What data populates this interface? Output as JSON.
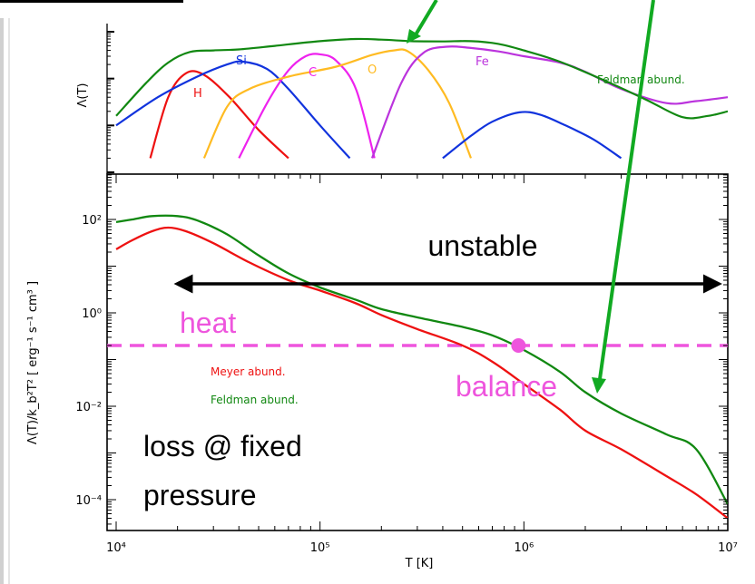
{
  "colors": {
    "red": "#ee1111",
    "blue": "#1133dd",
    "magenta": "#ee22ee",
    "orange": "#ffbb22",
    "purple": "#bb33dd",
    "green": "#118811",
    "heat": "#ee55dd",
    "arrow": "#11aa22"
  },
  "chart_data": [
    {
      "type": "line",
      "panel": "top",
      "title": "",
      "xlabel": "",
      "ylabel": "Λ(T)",
      "xscale": "log",
      "yscale": "log",
      "xlim": [
        10000,
        10000000
      ],
      "series": [
        {
          "name": "H",
          "color": "red",
          "points": [
            [
              14700,
              0.02
            ],
            [
              18000,
              0.4
            ],
            [
              22000,
              1.3
            ],
            [
              27000,
              1.2
            ],
            [
              36000,
              0.4
            ],
            [
              50000,
              0.08
            ],
            [
              70000,
              0.02
            ]
          ]
        },
        {
          "name": "Si",
          "color": "blue",
          "points": [
            [
              10000,
              0.1
            ],
            [
              16000,
              0.4
            ],
            [
              25000,
              1.1
            ],
            [
              35000,
              2.0
            ],
            [
              42000,
              2.3
            ],
            [
              55000,
              1.6
            ],
            [
              70000,
              0.6
            ],
            [
              100000,
              0.1
            ],
            [
              140000,
              0.02
            ]
          ]
        },
        {
          "name": "C",
          "color": "magenta",
          "points": [
            [
              40000,
              0.02
            ],
            [
              55000,
              0.3
            ],
            [
              70000,
              1.5
            ],
            [
              85000,
              3.0
            ],
            [
              100000,
              3.3
            ],
            [
              120000,
              2.4
            ],
            [
              150000,
              0.6
            ],
            [
              185000,
              0.02
            ]
          ]
        },
        {
          "name": "O",
          "color": "orange",
          "points": [
            [
              27000,
              0.02
            ],
            [
              35000,
              0.25
            ],
            [
              45000,
              0.6
            ],
            [
              70000,
              1.1
            ],
            [
              120000,
              1.8
            ],
            [
              180000,
              3.2
            ],
            [
              230000,
              4.0
            ],
            [
              270000,
              3.8
            ],
            [
              340000,
              1.5
            ],
            [
              430000,
              0.3
            ],
            [
              550000,
              0.02
            ]
          ]
        },
        {
          "name": "Fe",
          "color": "purple",
          "points": [
            [
              180000,
              0.02
            ],
            [
              250000,
              0.8
            ],
            [
              320000,
              3.5
            ],
            [
              420000,
              4.8
            ],
            [
              550000,
              4.5
            ],
            [
              750000,
              3.8
            ],
            [
              1000000,
              3.0
            ],
            [
              1500000,
              2.2
            ],
            [
              2000000,
              1.4
            ],
            [
              3000000,
              0.6
            ],
            [
              5000000,
              0.3
            ],
            [
              7000000,
              0.33
            ],
            [
              10000000,
              0.4
            ]
          ]
        },
        {
          "name": "Feldman abund.",
          "color": "green",
          "points": [
            [
              10000,
              0.16
            ],
            [
              14000,
              0.8
            ],
            [
              18000,
              2.2
            ],
            [
              23000,
              3.7
            ],
            [
              30000,
              4.0
            ],
            [
              40000,
              4.2
            ],
            [
              60000,
              5.0
            ],
            [
              100000,
              6.3
            ],
            [
              150000,
              7.0
            ],
            [
              200000,
              6.8
            ],
            [
              280000,
              6.3
            ],
            [
              400000,
              6.2
            ],
            [
              550000,
              6.3
            ],
            [
              750000,
              5.5
            ],
            [
              1000000,
              4.0
            ],
            [
              1500000,
              2.3
            ],
            [
              2500000,
              0.9
            ],
            [
              4000000,
              0.35
            ],
            [
              6000000,
              0.15
            ],
            [
              8000000,
              0.16
            ],
            [
              10000000,
              0.2
            ]
          ]
        },
        {
          "name": "",
          "color": "blue",
          "points": [
            [
              400000,
              0.02
            ],
            [
              550000,
              0.06
            ],
            [
              700000,
              0.12
            ],
            [
              950000,
              0.19
            ],
            [
              1200000,
              0.17
            ],
            [
              1600000,
              0.1
            ],
            [
              2200000,
              0.05
            ],
            [
              3000000,
              0.02
            ]
          ]
        }
      ]
    },
    {
      "type": "line",
      "panel": "bottom",
      "title": "",
      "xlabel": "T [K]",
      "ylabel": "Λ(T)/k_b²T² [ erg⁻¹ s⁻¹ cm³ ]",
      "xscale": "log",
      "yscale": "log",
      "xlim": [
        10000,
        10000000
      ],
      "ylim": [
        1.35e-05,
        600
      ],
      "xticks": [
        "10⁴",
        "10⁵",
        "10⁶",
        "10⁷"
      ],
      "yticks": [
        "10²",
        "10⁰",
        "10⁻²",
        "10⁻⁴"
      ],
      "series": [
        {
          "name": "Meyer abund.",
          "color": "red",
          "points": [
            [
              10000,
              23
            ],
            [
              12000,
              36
            ],
            [
              15000,
              56
            ],
            [
              18000,
              67
            ],
            [
              22000,
              56
            ],
            [
              30000,
              31
            ],
            [
              45000,
              12
            ],
            [
              70000,
              5.0
            ],
            [
              100000,
              3.0
            ],
            [
              150000,
              1.6
            ],
            [
              200000,
              0.9
            ],
            [
              300000,
              0.45
            ],
            [
              500000,
              0.2
            ],
            [
              700000,
              0.09
            ],
            [
              1000000,
              0.03
            ],
            [
              1500000,
              0.0085
            ],
            [
              2000000,
              0.003
            ],
            [
              3000000,
              0.0012
            ],
            [
              5000000,
              0.00032
            ],
            [
              7000000,
              0.00013
            ],
            [
              10000000,
              4e-05
            ]
          ]
        },
        {
          "name": "Feldman abund.",
          "color": "green",
          "points": [
            [
              10000,
              88
            ],
            [
              12000,
              100
            ],
            [
              15000,
              118
            ],
            [
              20000,
              118
            ],
            [
              25000,
              95
            ],
            [
              35000,
              48
            ],
            [
              50000,
              17
            ],
            [
              70000,
              7.0
            ],
            [
              100000,
              3.5
            ],
            [
              150000,
              1.9
            ],
            [
              200000,
              1.2
            ],
            [
              300000,
              0.8
            ],
            [
              500000,
              0.5
            ],
            [
              700000,
              0.33
            ],
            [
              1000000,
              0.16
            ],
            [
              1500000,
              0.055
            ],
            [
              2000000,
              0.02
            ],
            [
              3000000,
              0.007
            ],
            [
              5000000,
              0.0025
            ],
            [
              7000000,
              0.0012
            ],
            [
              10000000,
              8e-05
            ]
          ]
        }
      ],
      "annotations": {
        "unstable": "unstable",
        "heat": "heat",
        "balance": "balance",
        "loss_line1": "loss @ fixed",
        "loss_line2": "pressure",
        "balance_point": [
          1000000,
          0.2
        ],
        "heat_level": 0.2,
        "unstable_range": [
          20000,
          9000000
        ],
        "unstable_level": 2.0
      }
    }
  ]
}
